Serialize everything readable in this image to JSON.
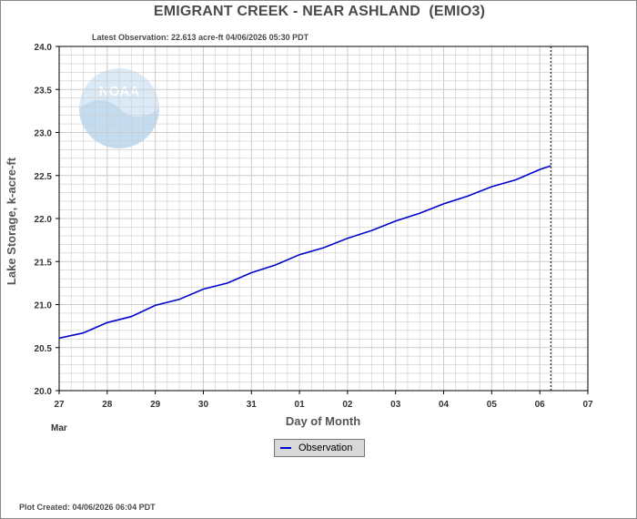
{
  "header": {
    "title": "EMIGRANT CREEK - NEAR ASHLAND  (EMIO3)",
    "latest_observation": "Latest Observation: 22.613 acre-ft 04/06/2026 05:30 PDT"
  },
  "footer": {
    "plot_created": "Plot Created: 04/06/2026 06:04 PDT"
  },
  "watermark": {
    "text": "NOAA",
    "colors": {
      "light": "#dbeaf7",
      "mid": "#c4dcf0"
    }
  },
  "legend": {
    "observation_label": "Observation"
  },
  "colors": {
    "series": "#0000cc",
    "grid": "#cccccc",
    "axis": "#000000",
    "marker": "#000000"
  },
  "chart_data": {
    "type": "line",
    "title": "EMIGRANT CREEK - NEAR ASHLAND  (EMIO3)",
    "xlabel": "Day of Month",
    "ylabel": "Lake Storage, k-acre-ft",
    "x_tick_labels": [
      "27",
      "28",
      "29",
      "30",
      "31",
      "01",
      "02",
      "03",
      "04",
      "05",
      "06",
      "07"
    ],
    "x_month_label": "Mar",
    "xlim": [
      "03/27",
      "04/07"
    ],
    "ylim": [
      20.0,
      24.0
    ],
    "y_ticks": [
      "20.0",
      "20.5",
      "21.0",
      "21.5",
      "22.0",
      "22.5",
      "23.0",
      "23.5",
      "24.0"
    ],
    "grid": true,
    "legend_position": "bottom-center",
    "latest_time": "04/06 05:30",
    "series": [
      {
        "name": "Observation",
        "points": [
          [
            "03/27 00:00",
            20.61
          ],
          [
            "03/27 12:00",
            20.67
          ],
          [
            "03/28 00:00",
            20.79
          ],
          [
            "03/28 12:00",
            20.86
          ],
          [
            "03/29 00:00",
            20.99
          ],
          [
            "03/29 12:00",
            21.06
          ],
          [
            "03/30 00:00",
            21.18
          ],
          [
            "03/30 12:00",
            21.25
          ],
          [
            "03/31 00:00",
            21.37
          ],
          [
            "03/31 12:00",
            21.46
          ],
          [
            "04/01 00:00",
            21.58
          ],
          [
            "04/01 12:00",
            21.66
          ],
          [
            "04/02 00:00",
            21.77
          ],
          [
            "04/02 12:00",
            21.86
          ],
          [
            "04/03 00:00",
            21.97
          ],
          [
            "04/03 12:00",
            22.06
          ],
          [
            "04/04 00:00",
            22.17
          ],
          [
            "04/04 12:00",
            22.26
          ],
          [
            "04/05 00:00",
            22.37
          ],
          [
            "04/05 12:00",
            22.45
          ],
          [
            "04/06 00:00",
            22.57
          ],
          [
            "04/06 05:30",
            22.613
          ]
        ]
      }
    ]
  }
}
